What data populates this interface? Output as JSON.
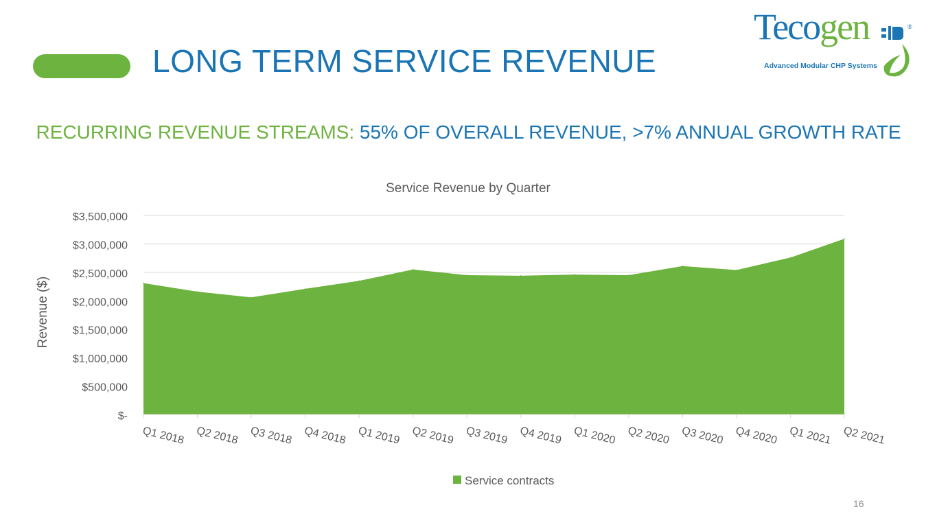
{
  "colors": {
    "accent_blue": "#1b75b4",
    "accent_green": "#6db33f",
    "text_gray": "#595959",
    "grid_gray": "#d9d9d9"
  },
  "header": {
    "title": "LONG TERM SERVICE REVENUE"
  },
  "logo": {
    "word_part1": "Teco",
    "word_part2": "gen",
    "tagline": "Advanced Modular CHP Systems",
    "registered": "®"
  },
  "subtitle": {
    "green_part": "RECURRING REVENUE STREAMS: ",
    "blue_part": "55% OF OVERALL REVENUE, >7% ANNUAL GROWTH RATE"
  },
  "chart_data": {
    "type": "area",
    "title": "Service Revenue by Quarter",
    "ylabel": "Revenue ($)",
    "xlabel": "",
    "categories": [
      "Q1 2018",
      "Q2 2018",
      "Q3 2018",
      "Q4 2018",
      "Q1 2019",
      "Q2 2019",
      "Q3 2019",
      "Q4 2019",
      "Q1 2020",
      "Q2 2020",
      "Q3 2020",
      "Q4 2020",
      "Q1 2021",
      "Q2 2021"
    ],
    "series": [
      {
        "name": "Service contracts",
        "color": "#6db33f",
        "values": [
          2310000,
          2160000,
          2060000,
          2210000,
          2350000,
          2550000,
          2450000,
          2440000,
          2460000,
          2450000,
          2610000,
          2540000,
          2760000,
          3090000
        ]
      }
    ],
    "ylim": [
      0,
      3500000
    ],
    "yticks": [
      0,
      500000,
      1000000,
      1500000,
      2000000,
      2500000,
      3000000,
      3500000
    ],
    "ytick_labels": [
      "$-",
      "$500,000",
      "$1,000,000",
      "$1,500,000",
      "$2,000,000",
      "$2,500,000",
      "$3,000,000",
      "$3,500,000"
    ],
    "grid": true,
    "legend": "bottom"
  },
  "page": {
    "number": "16"
  }
}
